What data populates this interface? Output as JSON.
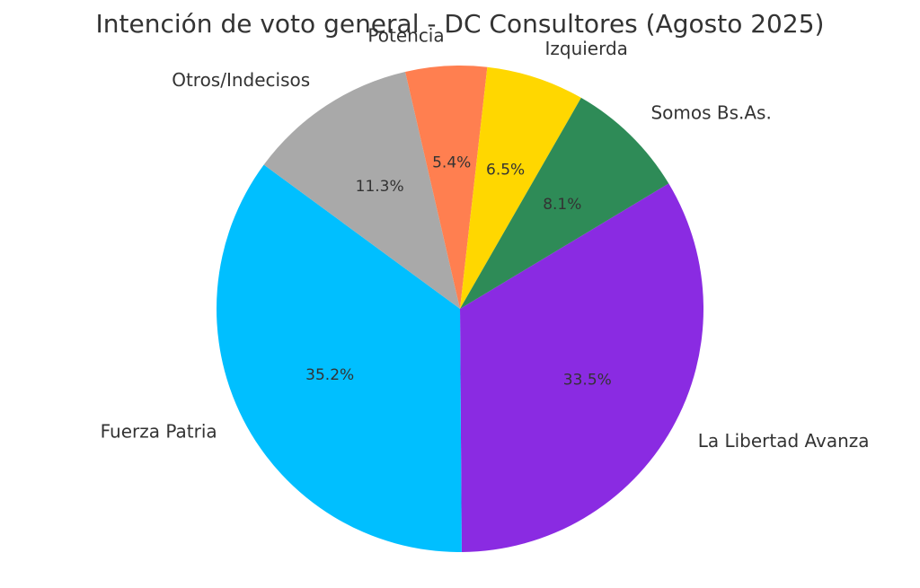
{
  "chart_data": {
    "type": "pie",
    "title": "Intención de voto general - DC Consultores (Agosto 2025)",
    "slices": [
      {
        "label": "La Libertad Avanza",
        "value": 33.5,
        "pct_label": "33.5%",
        "color": "#8a2be2"
      },
      {
        "label": "Fuerza Patria",
        "value": 35.2,
        "pct_label": "35.2%",
        "color": "#00bfff"
      },
      {
        "label": "Otros/Indecisos",
        "value": 11.3,
        "pct_label": "11.3%",
        "color": "#a9a9a9"
      },
      {
        "label": "Potencia",
        "value": 5.4,
        "pct_label": "5.4%",
        "color": "#ff7f50"
      },
      {
        "label": "Izquierda",
        "value": 6.5,
        "pct_label": "6.5%",
        "color": "#ffd700"
      },
      {
        "label": "Somos Bs.As.",
        "value": 8.1,
        "pct_label": "8.1%",
        "color": "#2e8b57"
      }
    ]
  }
}
